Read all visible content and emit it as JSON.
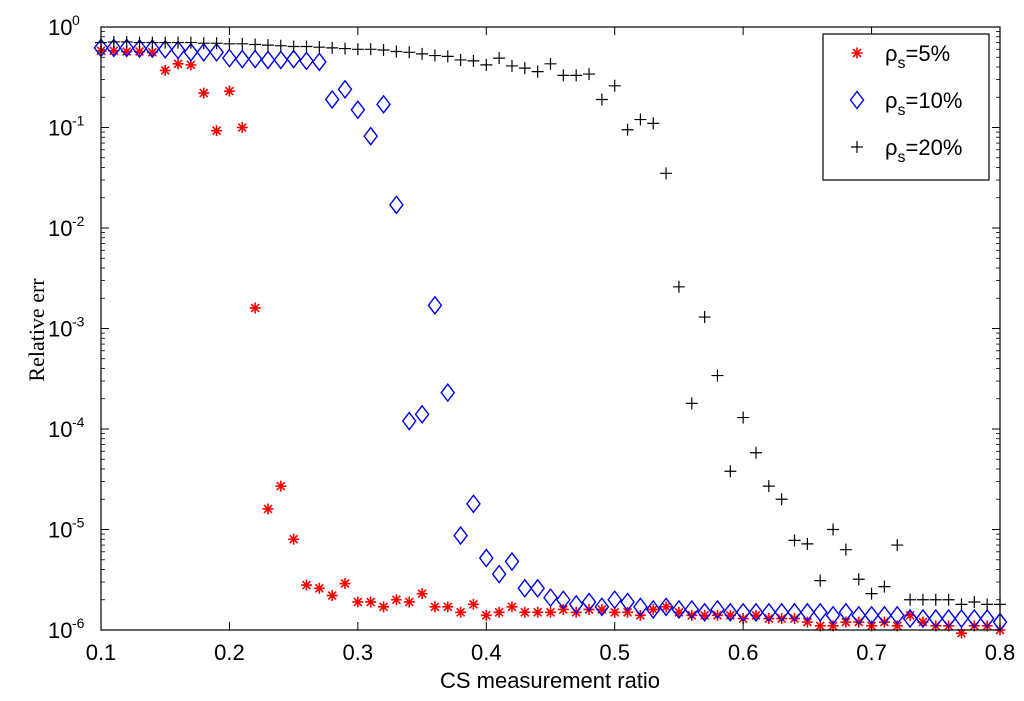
{
  "chart_data": {
    "type": "scatter",
    "title": "",
    "xlabel": "CS measurement ratio",
    "ylabel": "Relative err",
    "xlim": [
      0.1,
      0.8
    ],
    "ylim": [
      1e-06,
      1
    ],
    "yscale": "log",
    "grid": false,
    "legend_position": "top-right",
    "x_ticks": [
      {
        "value": 0.1,
        "label": "0.1"
      },
      {
        "value": 0.2,
        "label": "0.2"
      },
      {
        "value": 0.3,
        "label": "0.3"
      },
      {
        "value": 0.4,
        "label": "0.4"
      },
      {
        "value": 0.5,
        "label": "0.5"
      },
      {
        "value": 0.6,
        "label": "0.6"
      },
      {
        "value": 0.7,
        "label": "0.7"
      },
      {
        "value": 0.8,
        "label": "0.8"
      }
    ],
    "y_ticks": [
      {
        "value": 1,
        "base": "10",
        "exp": "0"
      },
      {
        "value": 0.1,
        "base": "10",
        "exp": "-1"
      },
      {
        "value": 0.01,
        "base": "10",
        "exp": "-2"
      },
      {
        "value": 0.001,
        "base": "10",
        "exp": "-3"
      },
      {
        "value": 0.0001,
        "base": "10",
        "exp": "-4"
      },
      {
        "value": 1e-05,
        "base": "10",
        "exp": "-5"
      },
      {
        "value": 1e-06,
        "base": "10",
        "exp": "-6"
      }
    ],
    "series": [
      {
        "name": "rho_s=5%",
        "legend_symbol": "ρ",
        "legend_sub": "s",
        "legend_tail": "=5%",
        "marker": "star",
        "color": "#ff0000",
        "x": [
          0.1,
          0.11,
          0.12,
          0.13,
          0.14,
          0.15,
          0.16,
          0.17,
          0.18,
          0.19,
          0.2,
          0.21,
          0.22,
          0.23,
          0.24,
          0.25,
          0.26,
          0.27,
          0.28,
          0.29,
          0.3,
          0.31,
          0.32,
          0.33,
          0.34,
          0.35,
          0.36,
          0.37,
          0.38,
          0.39,
          0.4,
          0.41,
          0.42,
          0.43,
          0.44,
          0.45,
          0.46,
          0.47,
          0.48,
          0.49,
          0.5,
          0.51,
          0.52,
          0.53,
          0.54,
          0.55,
          0.56,
          0.57,
          0.58,
          0.59,
          0.6,
          0.61,
          0.62,
          0.63,
          0.64,
          0.65,
          0.66,
          0.67,
          0.68,
          0.69,
          0.7,
          0.71,
          0.72,
          0.73,
          0.74,
          0.75,
          0.76,
          0.77,
          0.78,
          0.79,
          0.8
        ],
        "y": [
          0.58,
          0.58,
          0.57,
          0.57,
          0.56,
          0.37,
          0.43,
          0.42,
          0.22,
          0.093,
          0.23,
          0.1,
          0.0016,
          1.6e-05,
          2.7e-05,
          8e-06,
          2.8e-06,
          2.6e-06,
          2.2e-06,
          2.9e-06,
          1.9e-06,
          1.9e-06,
          1.7e-06,
          2e-06,
          1.9e-06,
          2.3e-06,
          1.7e-06,
          1.7e-06,
          1.5e-06,
          1.8e-06,
          1.4e-06,
          1.5e-06,
          1.7e-06,
          1.5e-06,
          1.5e-06,
          1.5e-06,
          1.6e-06,
          1.5e-06,
          1.6e-06,
          1.6e-06,
          1.5e-06,
          1.5e-06,
          1.4e-06,
          1.6e-06,
          1.7e-06,
          1.5e-06,
          1.4e-06,
          1.4e-06,
          1.4e-06,
          1.4e-06,
          1.3e-06,
          1.4e-06,
          1.3e-06,
          1.3e-06,
          1.3e-06,
          1.2e-06,
          1.1e-06,
          1.1e-06,
          1.2e-06,
          1.2e-06,
          1.1e-06,
          1.2e-06,
          1.1e-06,
          1.4e-06,
          1.2e-06,
          1.1e-06,
          1.1e-06,
          9.3e-07,
          1.1e-06,
          1.1e-06,
          1e-06
        ]
      },
      {
        "name": "rho_s=10%",
        "legend_symbol": "ρ",
        "legend_sub": "s",
        "legend_tail": "=10%",
        "marker": "diamond",
        "color": "#0000ee",
        "x": [
          0.1,
          0.11,
          0.12,
          0.13,
          0.14,
          0.15,
          0.16,
          0.17,
          0.18,
          0.19,
          0.2,
          0.21,
          0.22,
          0.23,
          0.24,
          0.25,
          0.26,
          0.27,
          0.28,
          0.29,
          0.3,
          0.31,
          0.32,
          0.33,
          0.34,
          0.35,
          0.36,
          0.37,
          0.38,
          0.39,
          0.4,
          0.41,
          0.42,
          0.43,
          0.44,
          0.45,
          0.46,
          0.47,
          0.48,
          0.49,
          0.5,
          0.51,
          0.52,
          0.53,
          0.54,
          0.55,
          0.56,
          0.57,
          0.58,
          0.59,
          0.6,
          0.61,
          0.62,
          0.63,
          0.64,
          0.65,
          0.66,
          0.67,
          0.68,
          0.69,
          0.7,
          0.71,
          0.72,
          0.73,
          0.74,
          0.75,
          0.76,
          0.77,
          0.78,
          0.79,
          0.8
        ],
        "y": [
          0.62,
          0.62,
          0.62,
          0.61,
          0.61,
          0.6,
          0.59,
          0.56,
          0.56,
          0.56,
          0.49,
          0.48,
          0.48,
          0.47,
          0.47,
          0.48,
          0.46,
          0.45,
          0.19,
          0.24,
          0.15,
          0.082,
          0.17,
          0.017,
          0.00012,
          0.00014,
          0.0017,
          0.00023,
          8.7e-06,
          1.8e-05,
          5.2e-06,
          3.6e-06,
          4.8e-06,
          2.6e-06,
          2.6e-06,
          2.1e-06,
          2e-06,
          1.8e-06,
          1.9e-06,
          1.7e-06,
          2e-06,
          1.9e-06,
          1.7e-06,
          1.6e-06,
          1.7e-06,
          1.6e-06,
          1.6e-06,
          1.5e-06,
          1.6e-06,
          1.5e-06,
          1.5e-06,
          1.5e-06,
          1.5e-06,
          1.5e-06,
          1.5e-06,
          1.5e-06,
          1.5e-06,
          1.4e-06,
          1.5e-06,
          1.4e-06,
          1.4e-06,
          1.4e-06,
          1.4e-06,
          1.3e-06,
          1.3e-06,
          1.3e-06,
          1.3e-06,
          1.3e-06,
          1.3e-06,
          1.3e-06,
          1.2e-06
        ]
      },
      {
        "name": "rho_s=20%",
        "legend_symbol": "ρ",
        "legend_sub": "s",
        "legend_tail": "=20%",
        "marker": "plus",
        "color": "#000000",
        "x": [
          0.1,
          0.11,
          0.12,
          0.13,
          0.14,
          0.15,
          0.16,
          0.17,
          0.18,
          0.19,
          0.2,
          0.21,
          0.22,
          0.23,
          0.24,
          0.25,
          0.26,
          0.27,
          0.28,
          0.29,
          0.3,
          0.31,
          0.32,
          0.33,
          0.34,
          0.35,
          0.36,
          0.37,
          0.38,
          0.39,
          0.4,
          0.41,
          0.42,
          0.43,
          0.44,
          0.45,
          0.46,
          0.47,
          0.48,
          0.49,
          0.5,
          0.51,
          0.52,
          0.53,
          0.54,
          0.55,
          0.56,
          0.57,
          0.58,
          0.59,
          0.6,
          0.61,
          0.62,
          0.63,
          0.64,
          0.65,
          0.66,
          0.67,
          0.68,
          0.69,
          0.7,
          0.71,
          0.72,
          0.73,
          0.74,
          0.75,
          0.76,
          0.77,
          0.78,
          0.79,
          0.8
        ],
        "y": [
          0.7,
          0.71,
          0.71,
          0.7,
          0.7,
          0.7,
          0.7,
          0.7,
          0.69,
          0.69,
          0.68,
          0.68,
          0.67,
          0.66,
          0.65,
          0.64,
          0.64,
          0.63,
          0.62,
          0.61,
          0.6,
          0.6,
          0.59,
          0.57,
          0.56,
          0.54,
          0.52,
          0.51,
          0.47,
          0.46,
          0.42,
          0.49,
          0.41,
          0.39,
          0.36,
          0.43,
          0.33,
          0.33,
          0.34,
          0.19,
          0.26,
          0.095,
          0.12,
          0.11,
          0.035,
          0.0026,
          0.00018,
          0.0013,
          0.00034,
          3.8e-05,
          0.00013,
          5.8e-05,
          2.7e-05,
          2e-05,
          7.8e-06,
          7.2e-06,
          3.1e-06,
          1e-05,
          6.3e-06,
          3.2e-06,
          2.3e-06,
          2.7e-06,
          7e-06,
          2e-06,
          2e-06,
          2e-06,
          2e-06,
          1.8e-06,
          1.9e-06,
          1.8e-06,
          1.8e-06
        ]
      }
    ]
  }
}
